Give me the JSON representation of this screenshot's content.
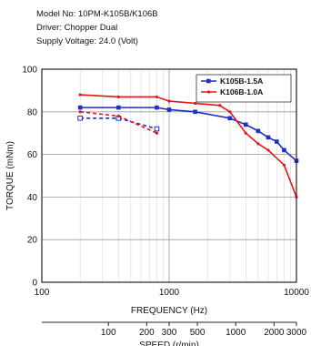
{
  "spec": {
    "model_line": "Model No: 10PM-K105B/K106B",
    "driver_line": "Driver: Chopper Dual",
    "supply_line": "Supply Voltage: 24.0 (Volt)"
  },
  "chart_data": {
    "type": "line",
    "title": "",
    "xlabel": "FREQUENCY (Hz)",
    "ylabel": "TORQUE (mNm)",
    "secondary_xlabel": "SPEED (r/min)",
    "x_scale": "log",
    "xlim": [
      100,
      10000
    ],
    "ylim": [
      0,
      100
    ],
    "grid": true,
    "legend_position": "top-right",
    "x_ticks": [
      {
        "value": 100,
        "label": "100"
      },
      {
        "value": 1000,
        "label": "1000"
      },
      {
        "value": 10000,
        "label": "10000"
      }
    ],
    "y_ticks": [
      {
        "value": 0,
        "label": "0"
      },
      {
        "value": 20,
        "label": "20"
      },
      {
        "value": 40,
        "label": "40"
      },
      {
        "value": 60,
        "label": "60"
      },
      {
        "value": 80,
        "label": "80"
      },
      {
        "value": 100,
        "label": "100"
      }
    ],
    "speed_ticks": [
      {
        "value": 100,
        "label": "100"
      },
      {
        "value": 200,
        "label": "200"
      },
      {
        "value": 300,
        "label": "300"
      },
      {
        "value": 500,
        "label": "500"
      },
      {
        "value": 1000,
        "label": "1000"
      },
      {
        "value": 2000,
        "label": "2000"
      },
      {
        "value": 3000,
        "label": "3000"
      }
    ],
    "speed_scale_note": "speed (r/min) = frequency (Hz) × 0.3",
    "series": [
      {
        "name": "K105B-1.5A",
        "color": "#1f2fbf",
        "style": "solid",
        "x": [
          200,
          400,
          800,
          1000,
          1600,
          3000,
          4000,
          5000,
          6000,
          7000,
          8000,
          10000
        ],
        "y": [
          82,
          82,
          82,
          81,
          80,
          77,
          74,
          71,
          68,
          66,
          62,
          57
        ]
      },
      {
        "name": "",
        "color": "#1f2fbf",
        "style": "dashed",
        "x": [
          200,
          400,
          800
        ],
        "y": [
          77,
          77,
          72
        ]
      },
      {
        "name": "K106B-1.0A",
        "color": "#e01818",
        "style": "solid",
        "x": [
          200,
          400,
          800,
          1000,
          1600,
          2500,
          3000,
          4000,
          5000,
          6000,
          8000,
          10000
        ],
        "y": [
          88,
          87,
          87,
          85,
          84,
          83,
          80,
          70,
          65,
          62,
          55,
          40
        ]
      },
      {
        "name": "",
        "color": "#e01818",
        "style": "dashed",
        "x": [
          200,
          400,
          800
        ],
        "y": [
          80,
          78,
          70
        ]
      }
    ]
  }
}
